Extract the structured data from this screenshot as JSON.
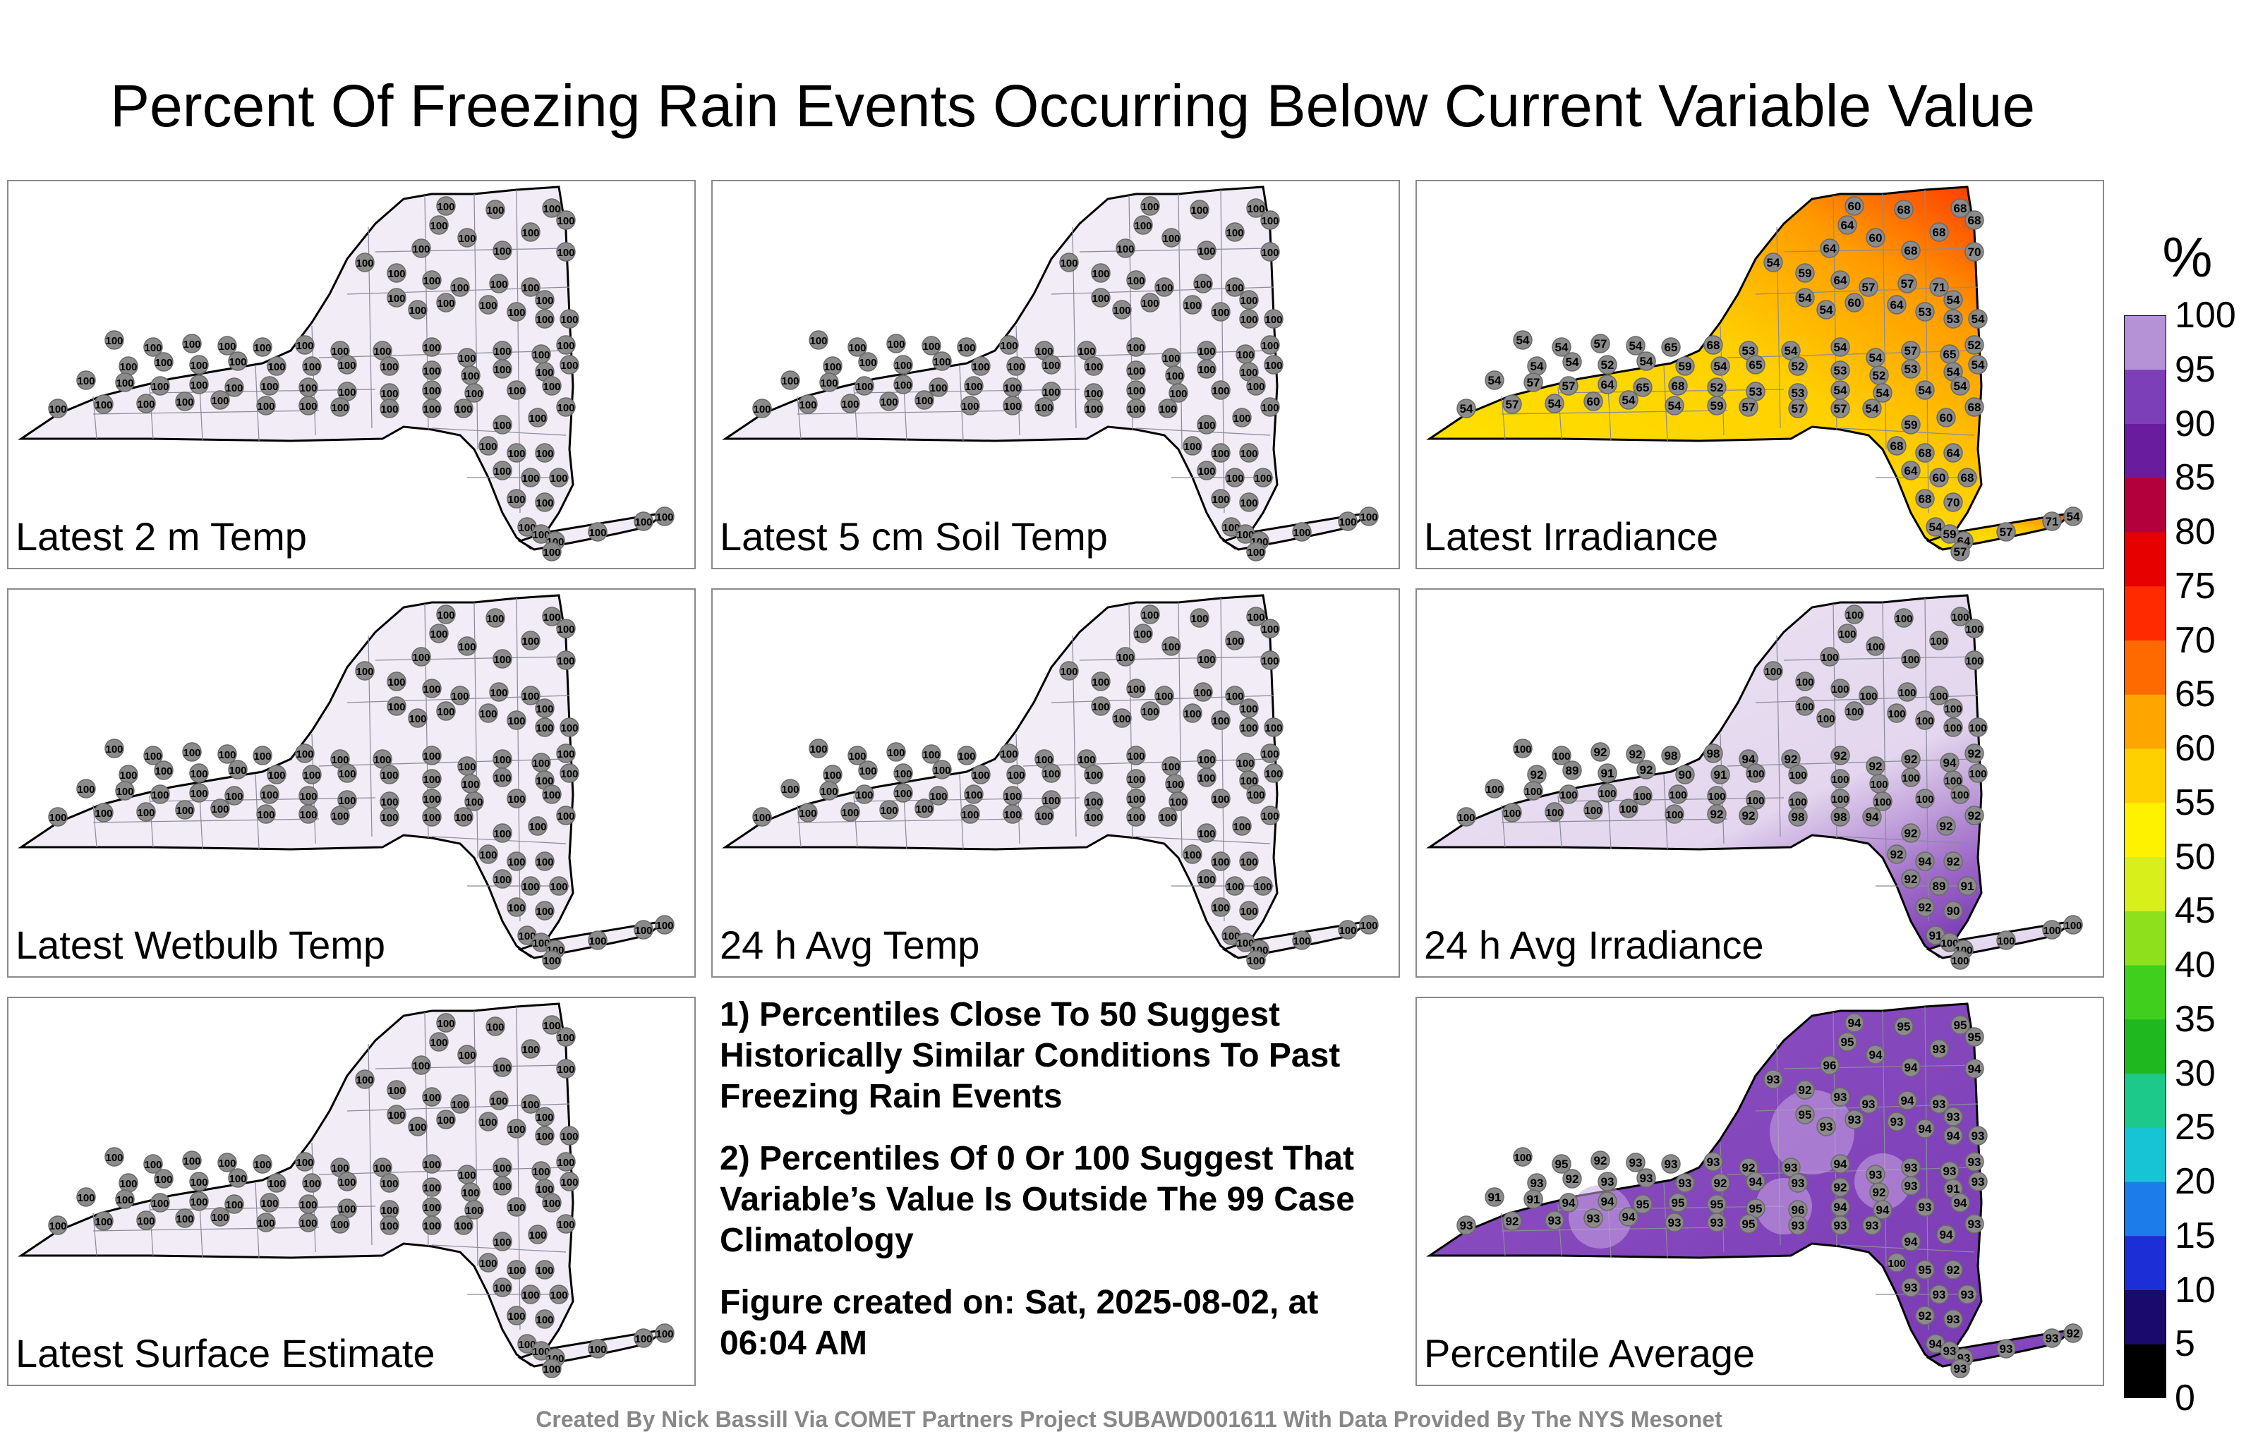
{
  "title": "Percent Of Freezing Rain Events Occurring Below Current Variable Value",
  "panels": [
    {
      "label": "Latest 2 m Temp",
      "mode": "uniform",
      "values": [
        "100"
      ]
    },
    {
      "label": "Latest 5 cm Soil Temp",
      "mode": "uniform",
      "values": [
        "100"
      ]
    },
    {
      "label": "Latest Irradiance",
      "mode": "irradiance",
      "values": [
        "60",
        "68",
        "68",
        "68",
        "64",
        "64",
        "60",
        "68",
        "68",
        "70",
        "54",
        "59",
        "64",
        "57",
        "57",
        "71",
        "54",
        "54",
        "54",
        "60",
        "64",
        "53",
        "53",
        "54",
        "54",
        "54",
        "57",
        "54",
        "65",
        "68",
        "53",
        "54",
        "54",
        "54",
        "57",
        "65",
        "52",
        "54",
        "54",
        "52",
        "54",
        "59",
        "54",
        "65",
        "52",
        "53",
        "52",
        "53",
        "54",
        "54",
        "54",
        "57",
        "57",
        "64",
        "65",
        "68",
        "52",
        "53",
        "53",
        "54",
        "54",
        "54",
        "54",
        "54",
        "57",
        "54",
        "60",
        "54",
        "54",
        "59",
        "57",
        "57",
        "57",
        "54",
        "59"
      ]
    },
    {
      "label": "Latest Wetbulb Temp",
      "mode": "uniform",
      "values": [
        "100"
      ]
    },
    {
      "label": "24 h Avg Temp",
      "mode": "uniform",
      "values": [
        "100"
      ]
    },
    {
      "label": "24 h Avg Irradiance",
      "mode": "avg_irradiance",
      "values": [
        "100",
        "100",
        "100",
        "100",
        "100",
        "100",
        "100",
        "100",
        "100",
        "100",
        "100",
        "100",
        "100",
        "100",
        "100",
        "100",
        "100",
        "100",
        "100",
        "100",
        "100",
        "100",
        "100",
        "100",
        "100",
        "100",
        "92",
        "92",
        "98",
        "98",
        "94",
        "92",
        "92",
        "92",
        "92",
        "94",
        "92",
        "92",
        "89",
        "91",
        "92",
        "90",
        "91"
      ]
    },
    {
      "label": "Percentile Average",
      "mode": "average",
      "values": [
        "94",
        "95",
        "95",
        "95",
        "95",
        "96",
        "94",
        "94",
        "93",
        "94",
        "93",
        "92",
        "93",
        "93",
        "94",
        "93",
        "93",
        "95",
        "93",
        "93",
        "93",
        "94",
        "94",
        "93",
        "100",
        "95",
        "92",
        "93",
        "93",
        "93",
        "92",
        "93",
        "94",
        "93",
        "93",
        "93",
        "93",
        "93",
        "92",
        "93",
        "93",
        "93",
        "92",
        "94",
        "93",
        "92",
        "92",
        "93",
        "91",
        "93",
        "91",
        "91",
        "94"
      ]
    }
  ],
  "notes": [
    "1) Percentiles Close To 50 Suggest Historically Similar Conditions To Past Freezing Rain Events",
    "2) Percentiles Of 0 Or 100 Suggest That Variable’s Value Is Outside The 99 Case Climatology",
    "Figure created on: Sat, 2025-08-02, at 06:04 AM"
  ],
  "colorbar": {
    "unit": "%",
    "ticks": [
      "0",
      "5",
      "10",
      "15",
      "20",
      "25",
      "30",
      "35",
      "40",
      "45",
      "50",
      "55",
      "60",
      "65",
      "70",
      "75",
      "80",
      "85",
      "90",
      "95",
      "100"
    ],
    "colors": [
      "#000000",
      "#1a0a6e",
      "#1c2fd6",
      "#1c7dea",
      "#17c4d6",
      "#1cc98a",
      "#1fb81f",
      "#3fcf1c",
      "#8fe01c",
      "#d8ef1c",
      "#fff200",
      "#ffd000",
      "#ffa500",
      "#ff6a00",
      "#ff2a00",
      "#e60000",
      "#b3003c",
      "#6a1c9e",
      "#7d3fb8",
      "#b592d6",
      "#e8e0ef"
    ]
  },
  "credit": "Created By Nick Bassill Via COMET Partners Project SUBAWD001611 With Data Provided By The NYS Mesonet"
}
